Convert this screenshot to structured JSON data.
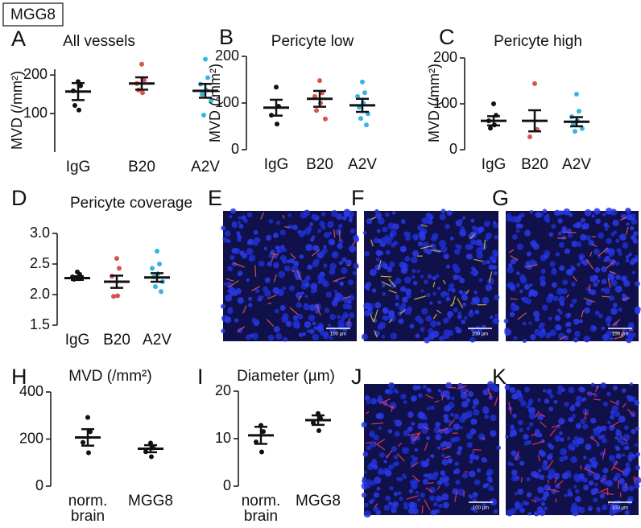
{
  "figure_label": "MGG8",
  "chart_data": [
    {
      "type": "dotplot",
      "panel": "A",
      "title": "All vessels",
      "ylabel": "MVD (/mm²)",
      "categories": [
        "IgG",
        "B20",
        "A2V"
      ],
      "colors": [
        "#111111",
        "#d9534f",
        "#35b6e0"
      ],
      "points": [
        [
          183,
          172,
          159,
          109,
          121
        ],
        [
          228,
          187,
          178,
          154,
          161
        ],
        [
          241,
          193,
          176,
          161,
          150,
          133,
          96
        ]
      ],
      "means": [
        157,
        178,
        159
      ],
      "errors": [
        22,
        16,
        18
      ],
      "ylim": [
        0,
        215
      ],
      "yticks": [
        100,
        200
      ]
    },
    {
      "type": "dotplot",
      "panel": "B",
      "title": "Pericyte low",
      "ylabel": "MVD (/mm²)",
      "categories": [
        "IgG",
        "B20",
        "A2V"
      ],
      "colors": [
        "#111111",
        "#d9534f",
        "#35b6e0"
      ],
      "points": [
        [
          134,
          93,
          74,
          55
        ],
        [
          148,
          122,
          114,
          100,
          84,
          66
        ],
        [
          145,
          122,
          114,
          100,
          91,
          77,
          67,
          53
        ]
      ],
      "means": [
        90,
        109,
        95
      ],
      "errors": [
        17,
        17,
        14
      ],
      "ylim": [
        0,
        200
      ],
      "yticks": [
        0,
        100,
        200
      ]
    },
    {
      "type": "dotplot",
      "panel": "C",
      "title": "Pericyte high",
      "ylabel": "MVD (/mm²)",
      "categories": [
        "IgG",
        "B20",
        "A2V"
      ],
      "colors": [
        "#111111",
        "#d9534f",
        "#35b6e0"
      ],
      "points": [
        [
          100,
          75,
          63,
          54,
          47
        ],
        [
          144,
          44,
          28
        ],
        [
          121,
          84,
          72,
          63,
          56,
          46,
          40
        ]
      ],
      "means": [
        63,
        63,
        61
      ],
      "errors": [
        10,
        23,
        10
      ],
      "ylim": [
        0,
        200
      ],
      "yticks": [
        0,
        100,
        200
      ]
    },
    {
      "type": "dotplot",
      "panel": "D",
      "title": "Pericyte coverage",
      "categories": [
        "IgG",
        "B20",
        "A2V"
      ],
      "colors": [
        "#111111",
        "#d9534f",
        "#35b6e0"
      ],
      "points": [
        [
          2.37,
          2.33,
          2.29,
          2.26,
          2.25
        ],
        [
          2.59,
          2.43,
          2.3,
          1.98,
          1.97
        ],
        [
          2.71,
          2.5,
          2.43,
          2.34,
          2.29,
          2.21,
          2.13,
          2.05
        ]
      ],
      "means": [
        2.27,
        2.21,
        2.28
      ],
      "errors": [
        0.03,
        0.1,
        0.07
      ],
      "ylim": [
        1.5,
        3.0
      ],
      "yticks": [
        {
          "value": 1.5,
          "label": "1.5"
        },
        {
          "value": 2,
          "label": "2.0"
        },
        {
          "value": 2.5,
          "label": "2.5"
        },
        {
          "value": 3,
          "label": "3.0"
        }
      ]
    },
    {
      "type": "dotplot",
      "panel": "H",
      "title": "MVD (/mm²)",
      "categories": [
        "norm. brain",
        "MGG8"
      ],
      "colors": [
        "#111111",
        "#111111"
      ],
      "points": [
        [
          292,
          231,
          186,
          142
        ],
        [
          183,
          163,
          146,
          125
        ]
      ],
      "means": [
        207,
        159
      ],
      "errors": [
        35,
        15
      ],
      "ylim": [
        0,
        400
      ],
      "yticks": [
        0,
        200,
        400
      ]
    },
    {
      "type": "dotplot",
      "panel": "I",
      "title": "Diameter (µm)",
      "categories": [
        "norm. brain",
        "MGG8"
      ],
      "colors": [
        "#111111",
        "#111111"
      ],
      "points": [
        [
          12.8,
          11.5,
          9.3,
          7.2
        ],
        [
          15.3,
          14.3,
          13.3,
          11.7
        ]
      ],
      "means": [
        10.7,
        13.9
      ],
      "errors": [
        1.8,
        1.0
      ],
      "ylim": [
        0,
        20
      ],
      "yticks": [
        0,
        10,
        20
      ]
    }
  ],
  "images": [
    {
      "panel": "E",
      "scale_bar": "100 µm"
    },
    {
      "panel": "F",
      "scale_bar": "100 µm"
    },
    {
      "panel": "G",
      "scale_bar": "100 µm"
    },
    {
      "panel": "J",
      "scale_bar": "100 µm"
    },
    {
      "panel": "K",
      "scale_bar": "100 µm"
    }
  ]
}
